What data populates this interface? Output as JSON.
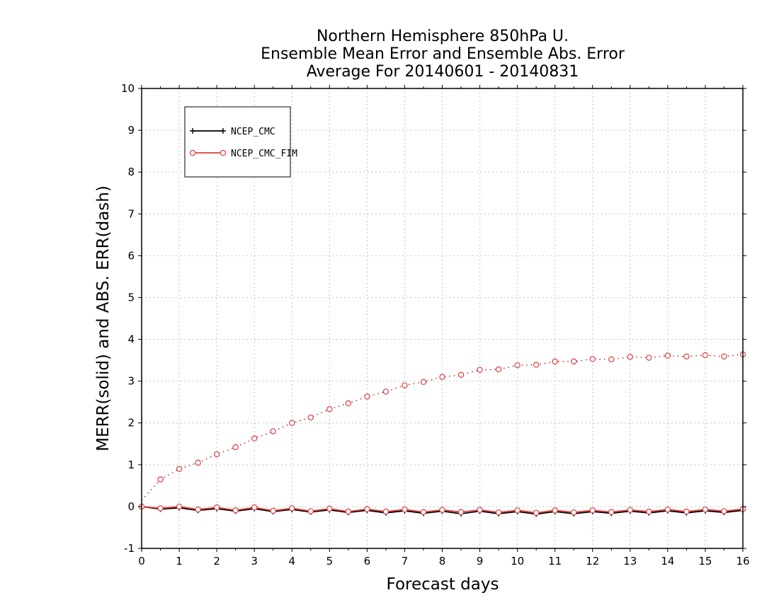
{
  "chart_data": {
    "type": "line",
    "title": [
      "Northern Hemisphere 850hPa U.",
      "Ensemble Mean Error and Ensemble Abs. Error",
      "Average For 20140601 - 20140831"
    ],
    "xlabel": "Forecast days",
    "ylabel": "MERR(solid) and ABS. ERR(dash)",
    "xlim": [
      0,
      16
    ],
    "ylim": [
      -1,
      10
    ],
    "xticks": [
      "0",
      "1",
      "2",
      "3",
      "4",
      "5",
      "6",
      "7",
      "8",
      "9",
      "10",
      "11",
      "12",
      "13",
      "14",
      "15",
      "16"
    ],
    "yticks": [
      "-1",
      "0",
      "1",
      "2",
      "3",
      "4",
      "5",
      "6",
      "7",
      "8",
      "9",
      "10"
    ],
    "grid": true,
    "legend_position": "top-left",
    "x": [
      0,
      0.5,
      1,
      1.5,
      2,
      2.5,
      3,
      3.5,
      4,
      4.5,
      5,
      5.5,
      6,
      6.5,
      7,
      7.5,
      8,
      8.5,
      9,
      9.5,
      10,
      10.5,
      11,
      11.5,
      12,
      12.5,
      13,
      13.5,
      14,
      14.5,
      15,
      15.5,
      16
    ],
    "series": [
      {
        "name": "NCEP_CMC",
        "color": "#000000",
        "marker": "plus",
        "mean_error": [
          0,
          -0.06,
          -0.03,
          -0.09,
          -0.05,
          -0.11,
          -0.05,
          -0.12,
          -0.07,
          -0.13,
          -0.08,
          -0.14,
          -0.09,
          -0.15,
          -0.1,
          -0.16,
          -0.11,
          -0.17,
          -0.11,
          -0.17,
          -0.12,
          -0.18,
          -0.12,
          -0.17,
          -0.12,
          -0.16,
          -0.11,
          -0.15,
          -0.1,
          -0.15,
          -0.1,
          -0.14,
          -0.09
        ]
      },
      {
        "name": "NCEP_CMC_FIM",
        "color": "#e03c3c",
        "marker": "circle",
        "mean_error": [
          0,
          -0.04,
          0,
          -0.07,
          -0.02,
          -0.09,
          -0.02,
          -0.1,
          -0.04,
          -0.11,
          -0.05,
          -0.12,
          -0.06,
          -0.12,
          -0.07,
          -0.13,
          -0.08,
          -0.13,
          -0.08,
          -0.14,
          -0.09,
          -0.15,
          -0.09,
          -0.14,
          -0.09,
          -0.13,
          -0.08,
          -0.12,
          -0.07,
          -0.12,
          -0.07,
          -0.11,
          -0.06
        ],
        "abs_error": [
          0.15,
          0.65,
          0.9,
          1.05,
          1.25,
          1.42,
          1.63,
          1.8,
          2.0,
          2.13,
          2.33,
          2.47,
          2.63,
          2.75,
          2.9,
          2.98,
          3.1,
          3.15,
          3.27,
          3.28,
          3.38,
          3.39,
          3.47,
          3.47,
          3.53,
          3.52,
          3.58,
          3.56,
          3.61,
          3.59,
          3.62,
          3.59,
          3.64
        ]
      }
    ]
  }
}
